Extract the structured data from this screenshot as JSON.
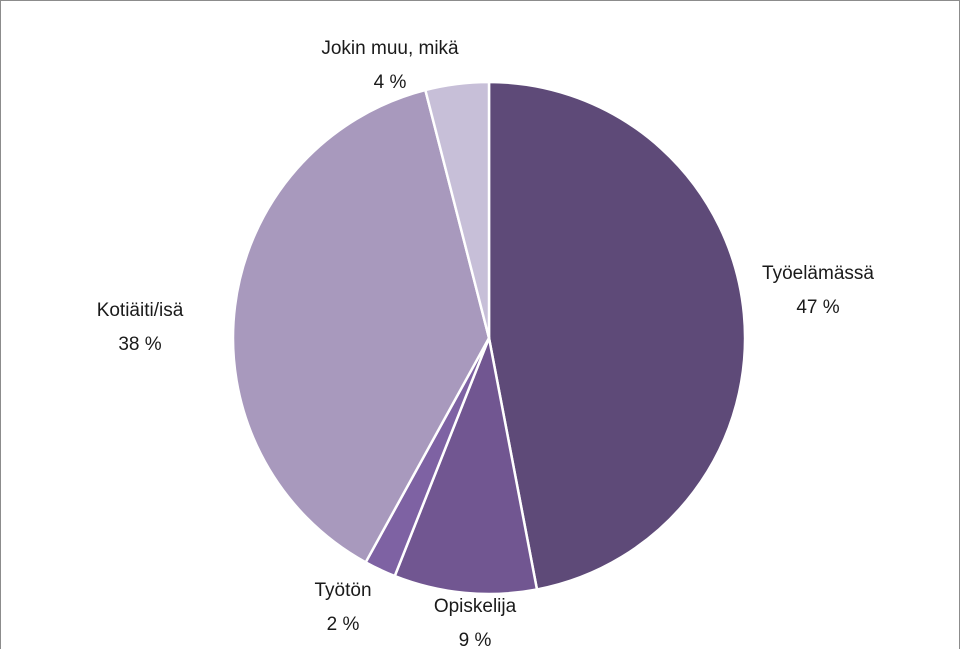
{
  "chart_data": {
    "type": "pie",
    "title": "",
    "start_angle_deg": 0,
    "direction": "clockwise",
    "legend": "none",
    "slices": [
      {
        "label": "Työelämässä",
        "value": 47,
        "value_text": "47 %",
        "color": "#5e4a78"
      },
      {
        "label": "Opiskelija",
        "value": 9,
        "value_text": "9 %",
        "color": "#715691"
      },
      {
        "label": "Työtön",
        "value": 2,
        "value_text": "2 %",
        "color": "#7e62a3"
      },
      {
        "label": "Kotiäiti/isä",
        "value": 38,
        "value_text": "38 %",
        "color": "#a899bd"
      },
      {
        "label": "Jokin muu, mikä",
        "value": 4,
        "value_text": "4 %",
        "color": "#c7bfd8"
      }
    ]
  }
}
